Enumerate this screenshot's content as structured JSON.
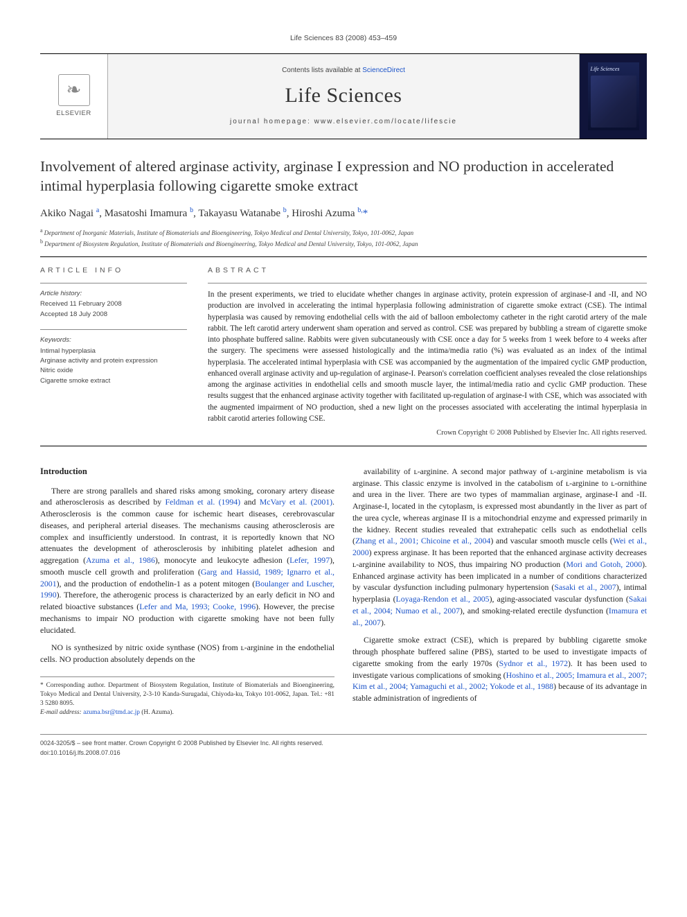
{
  "running_head": "Life Sciences 83 (2008) 453–459",
  "masthead": {
    "contents_prefix": "Contents lists available at ",
    "contents_link": "ScienceDirect",
    "journal": "Life Sciences",
    "homepage_prefix": "journal homepage: ",
    "homepage": "www.elsevier.com/locate/lifescie",
    "publisher": "ELSEVIER",
    "cover_title": "Life Sciences"
  },
  "title": "Involvement of altered arginase activity, arginase I expression and NO production in accelerated intimal hyperplasia following cigarette smoke extract",
  "authors_html": "Akiko Nagai <sup>a</sup>, Masatoshi Imamura <sup>b</sup>, Takayasu Watanabe <sup>b</sup>, Hiroshi Azuma <sup>b,</sup><span class='corr'>*</span>",
  "affils": {
    "a": "Department of Inorganic Materials, Institute of Biomaterials and Bioengineering, Tokyo Medical and Dental University, Tokyo, 101-0062, Japan",
    "b": "Department of Biosystem Regulation, Institute of Biomaterials and Bioengineering, Tokyo Medical and Dental University, Tokyo, 101-0062, Japan"
  },
  "info": {
    "heading": "ARTICLE INFO",
    "history_label": "Article history:",
    "received": "Received 11 February 2008",
    "accepted": "Accepted 18 July 2008",
    "keywords_label": "Keywords:",
    "keywords": [
      "Intimal hyperplasia",
      "Arginase activity and protein expression",
      "Nitric oxide",
      "Cigarette smoke extract"
    ]
  },
  "abstract": {
    "heading": "ABSTRACT",
    "text": "In the present experiments, we tried to elucidate whether changes in arginase activity, protein expression of arginase-I and -II, and NO production are involved in accelerating the intimal hyperplasia following administration of cigarette smoke extract (CSE). The intimal hyperplasia was caused by removing endothelial cells with the aid of balloon embolectomy catheter in the right carotid artery of the male rabbit. The left carotid artery underwent sham operation and served as control. CSE was prepared by bubbling a stream of cigarette smoke into phosphate buffered saline. Rabbits were given subcutaneously with CSE once a day for 5 weeks from 1 week before to 4 weeks after the surgery. The specimens were assessed histologically and the intima/media ratio (%) was evaluated as an index of the intimal hyperplasia. The accelerated intimal hyperplasia with CSE was accompanied by the augmentation of the impaired cyclic GMP production, enhanced overall arginase activity and up-regulation of arginase-I. Pearson's correlation coefficient analyses revealed the close relationships among the arginase activities in endothelial cells and smooth muscle layer, the intimal/media ratio and cyclic GMP production. These results suggest that the enhanced arginase activity together with facilitated up-regulation of arginase-I with CSE, which was associated with the augmented impairment of NO production, shed a new light on the processes associated with accelerating the intimal hyperplasia in rabbit carotid arteries following CSE.",
    "copyright": "Crown Copyright © 2008 Published by Elsevier Inc. All rights reserved."
  },
  "intro_heading": "Introduction",
  "p1a": "There are strong parallels and shared risks among smoking, coronary artery disease and atherosclerosis as described by ",
  "p1_ref1": "Feldman et al. (1994)",
  "p1b": " and ",
  "p1_ref2": "McVary et al. (2001)",
  "p1c": ". Atherosclerosis is the common cause for ischemic heart diseases, cerebrovascular diseases, and peripheral arterial diseases. The mechanisms causing atherosclerosis are complex and insufficiently understood. In contrast, it is reportedly known that NO attenuates the development of atherosclerosis by inhibiting platelet adhesion and aggregation (",
  "p1_ref3": "Azuma et al., 1986",
  "p1d": "), monocyte and leukocyte adhesion (",
  "p1_ref4": "Lefer, 1997",
  "p1e": "), smooth muscle cell growth and proliferation (",
  "p1_ref5": "Garg and Hassid, 1989; Ignarro et al., 2001",
  "p1f": "), and the production of endothelin-1 as a potent mitogen (",
  "p1_ref6": "Boulanger and Luscher, 1990",
  "p1g": "). Therefore, the atherogenic process is characterized by an early deficit in NO and related bioactive substances (",
  "p1_ref7": "Lefer and Ma, 1993; Cooke, 1996",
  "p1h": "). However, the precise mechanisms to impair NO production with cigarette smoking have not been fully elucidated.",
  "p2": "NO is synthesized by nitric oxide synthase (NOS) from ʟ-arginine in the endothelial cells. NO production absolutely depends on the",
  "p3a": "availability of ʟ-arginine. A second major pathway of ʟ-arginine metabolism is via arginase. This classic enzyme is involved in the catabolism of ʟ-arginine to ʟ-ornithine and urea in the liver. There are two types of mammalian arginase, arginase-I and -II. Arginase-I, located in the cytoplasm, is expressed most abundantly in the liver as part of the urea cycle, whereas arginase II is a mitochondrial enzyme and expressed primarily in the kidney. Recent studies revealed that extrahepatic cells such as endothelial cells (",
  "p3_ref1": "Zhang et al., 2001; Chicoine et al., 2004",
  "p3b": ") and vascular smooth muscle cells (",
  "p3_ref2": "Wei et al., 2000",
  "p3c": ") express arginase. It has been reported that the enhanced arginase activity decreases ʟ-arginine availability to NOS, thus impairing NO production (",
  "p3_ref3": "Mori and Gotoh, 2000",
  "p3d": "). Enhanced arginase activity has been implicated in a number of conditions characterized by vascular dysfunction including pulmonary hypertension (",
  "p3_ref4": "Sasaki et al., 2007",
  "p3e": "), intimal hyperplasia (",
  "p3_ref5": "Loyaga-Rendon et al., 2005",
  "p3f": "), aging-associated vascular dysfunction (",
  "p3_ref6": "Sakai et al., 2004; Numao et al., 2007",
  "p3g": "), and smoking-related erectile dysfunction (",
  "p3_ref7": "Imamura et al., 2007",
  "p3h": ").",
  "p4a": "Cigarette smoke extract (CSE), which is prepared by bubbling cigarette smoke through phosphate buffered saline (PBS), started to be used to investigate impacts of cigarette smoking from the early 1970s (",
  "p4_ref1": "Sydnor et al., 1972",
  "p4b": "). It has been used to investigate various complications of smoking (",
  "p4_ref2": "Hoshino et al., 2005; Imamura et al., 2007; Kim et al., 2004; Yamaguchi et al., 2002; Yokode et al., 1988",
  "p4c": ") because of its advantage in stable administration of ingredients of",
  "footnote": {
    "star": "* Corresponding author. Department of Biosystem Regulation, Institute of Biomaterials and Bioengineering, Tokyo Medical and Dental University, 2-3-10 Kanda-Surugadai, Chiyoda-ku, Tokyo 101-0062, Japan. Tel.: +81 3 5280 8095.",
    "email_label": "E-mail address:",
    "email": "azuma.bsr@tmd.ac.jp",
    "email_tail": " (H. Azuma)."
  },
  "footer": {
    "issn": "0024-3205/$ – see front matter. Crown Copyright © 2008 Published by Elsevier Inc. All rights reserved.",
    "doi": "doi:10.1016/j.lfs.2008.07.016"
  }
}
